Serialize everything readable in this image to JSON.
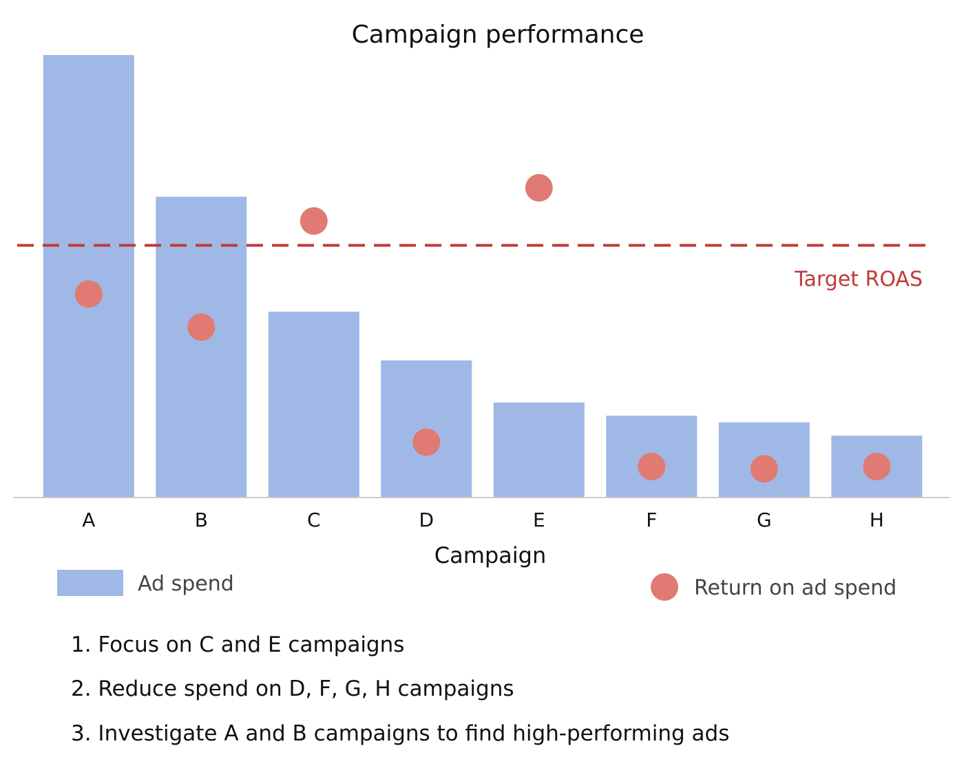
{
  "chart_data": {
    "type": "bar",
    "title": "Campaign performance",
    "xlabel": "Campaign",
    "ylabel": "",
    "categories": [
      "A",
      "B",
      "C",
      "D",
      "E",
      "F",
      "G",
      "H"
    ],
    "series": [
      {
        "name": "Ad spend",
        "type": "bar",
        "values": [
          100,
          68,
          42,
          31,
          21.5,
          18.5,
          17,
          14
        ]
      },
      {
        "name": "Return on ad spend",
        "type": "scatter",
        "values": [
          46,
          38.5,
          62.5,
          12.5,
          70,
          7,
          6.5,
          7
        ]
      }
    ],
    "ylim": [
      0,
      100
    ],
    "target_line": {
      "label": "Target ROAS",
      "value": 57
    },
    "legend_position": "bottom",
    "grid": false,
    "colors": {
      "bar": "#a0b8e6",
      "point": "#e07a72",
      "target": "#bf3b36",
      "axis": "#cccccc"
    }
  },
  "notes": [
    "1. Focus on C and E campaigns",
    "2. Reduce spend on D, F, G, H campaigns",
    "3. Investigate A and B campaigns to find high-performing ads"
  ]
}
